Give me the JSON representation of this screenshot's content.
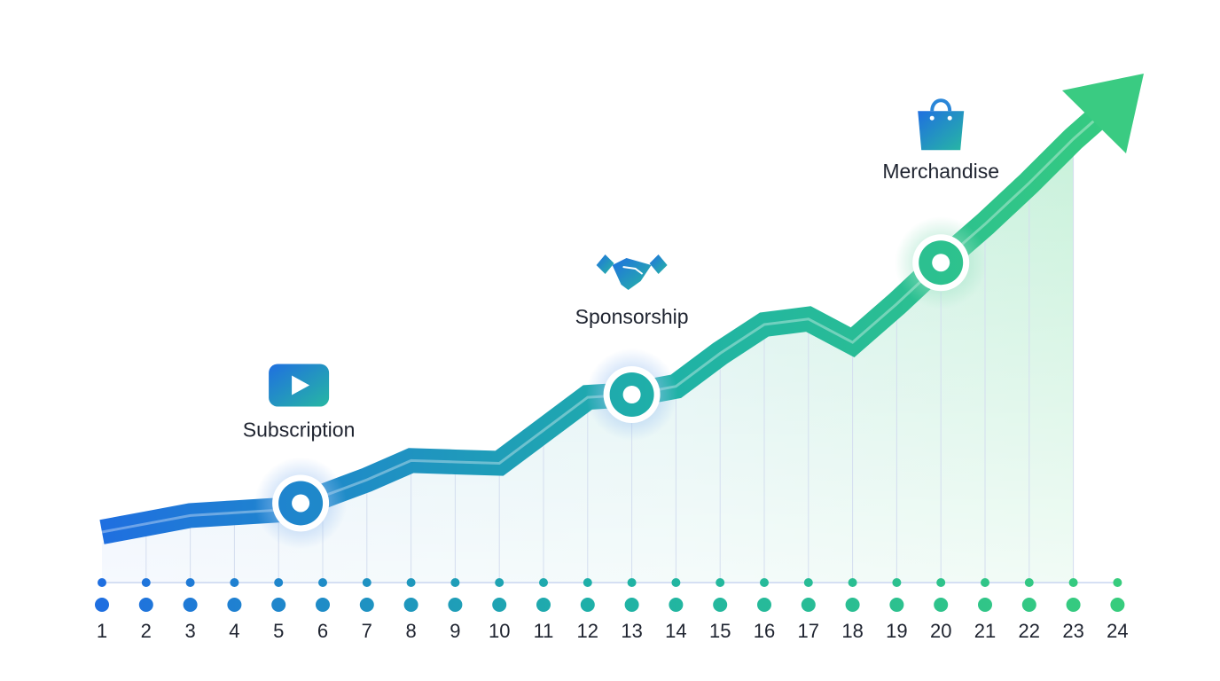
{
  "colors": {
    "blue": "#1f6fe0",
    "teal": "#1fb2a6",
    "green": "#37cc7d",
    "text": "#1f2430",
    "axis": "#c9d6f0"
  },
  "chart_data": {
    "type": "line",
    "x": [
      1,
      2,
      3,
      4,
      5,
      6,
      7,
      8,
      9,
      10,
      11,
      12,
      13,
      14,
      15,
      16,
      17,
      18,
      19,
      20,
      21,
      22,
      23,
      24
    ],
    "series": [
      {
        "values": [
          2.0,
          2.6,
          3.2,
          3.4,
          3.6,
          4.6,
          5.8,
          7.2,
          7.1,
          7.0,
          9.4,
          11.8,
          12.0,
          12.6,
          15.0,
          17.1,
          17.5,
          15.8,
          18.6,
          21.6,
          24.4,
          27.4,
          30.6,
          null
        ]
      }
    ],
    "annotations": [
      {
        "label": "Subscription",
        "icon": "video-play-icon",
        "x": 5.5
      },
      {
        "label": "Sponsorship",
        "icon": "handshake-icon",
        "x": 13
      },
      {
        "label": "Merchandise",
        "icon": "shopping-bag-icon",
        "x": 20
      }
    ],
    "xlabel": "",
    "ylabel": "",
    "grid": false,
    "arrow_at_end": true
  }
}
